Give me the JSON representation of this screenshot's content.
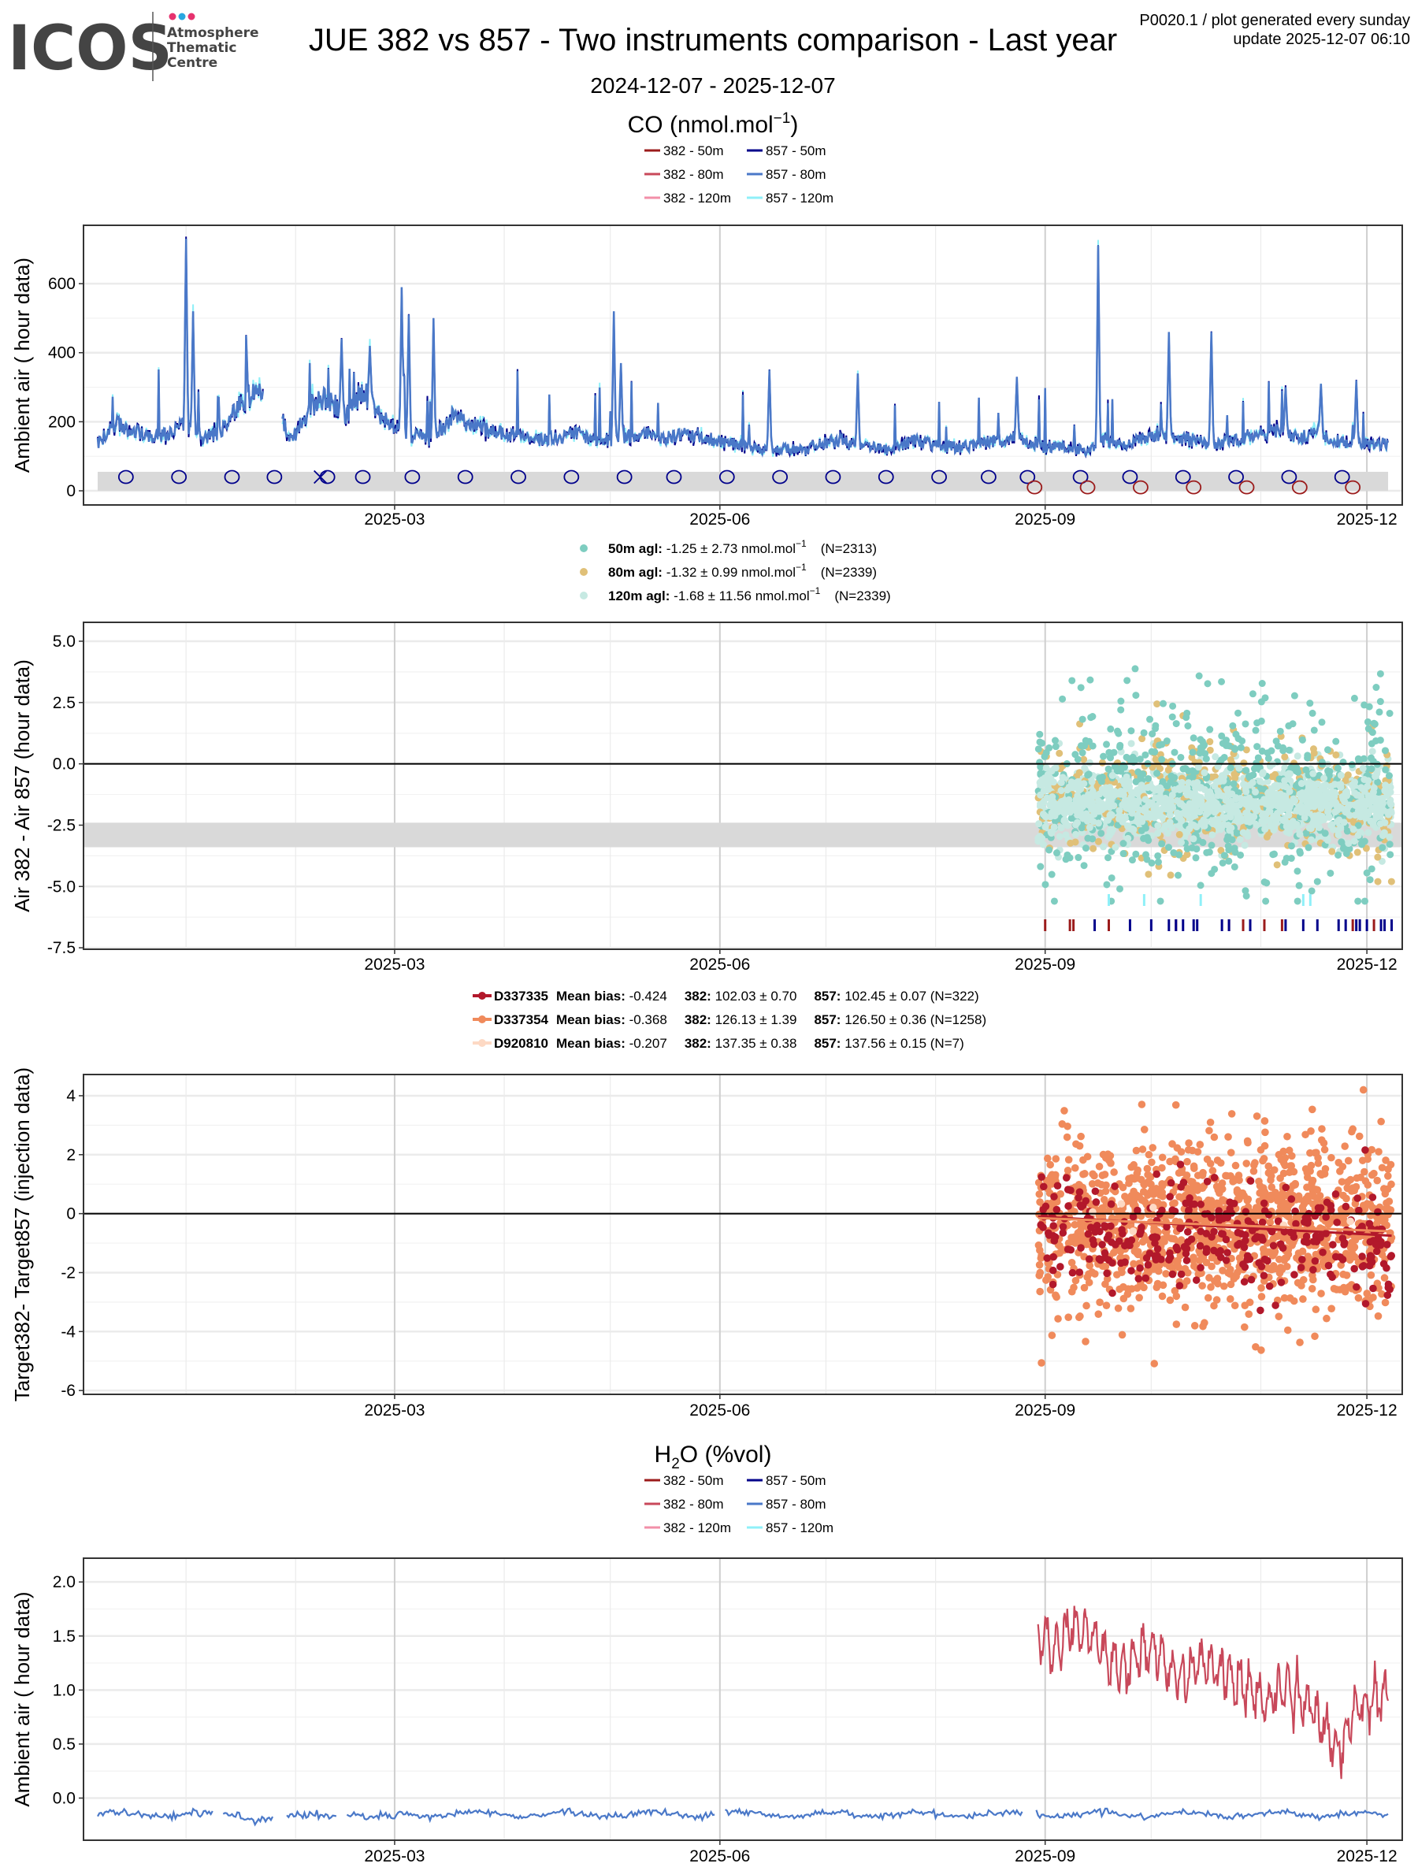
{
  "header": {
    "logo_text": "ICOS",
    "logo_sub": [
      "Atmosphere",
      "Thematic",
      "Centre"
    ],
    "title": "JUE 382 vs 857 - Two instruments comparison - Last year",
    "date_range": "2024-12-07 - 2025-12-07",
    "meta_line1": "P0020.1 / plot generated every sunday",
    "meta_line2": "update  2025-12-07 06:10"
  },
  "colors": {
    "382_50m": "#9B1B1B",
    "382_80m": "#C8485A",
    "382_120m": "#F28FA8",
    "857_50m": "#00008B",
    "857_80m": "#4A78C8",
    "857_120m": "#8FF0F8",
    "diff_50m": "#7ECDC0",
    "diff_80m": "#E0C078",
    "diff_120m": "#C6E9E2",
    "D337335": "#B2182B",
    "D337354": "#F08A5B",
    "D920810": "#FDD9C4",
    "band": "#D9D9D9"
  },
  "x_axis": {
    "start": "2024-12-07",
    "end": "2025-12-07",
    "tick_labels": [
      "2025-03",
      "2025-06",
      "2025-09",
      "2025-12"
    ],
    "tick_days": [
      84,
      176,
      268,
      359
    ],
    "minor_days": [
      25,
      56,
      115,
      145,
      206,
      237,
      298,
      329
    ],
    "xlim_days": [
      -4,
      369
    ]
  },
  "chart_data": [
    {
      "type": "line",
      "title_main": "CO (nmol.mol",
      "title_sup": "−1",
      "title_end": ")",
      "ylabel": "Ambient air ( hour data)",
      "ylim": [
        -41,
        769
      ],
      "yticks": [
        0,
        200,
        400,
        600
      ],
      "legend": [
        {
          "key": "382_50m",
          "label": "382 - 50m"
        },
        {
          "key": "857_50m",
          "label": "857 - 50m"
        },
        {
          "key": "382_80m",
          "label": "382 - 80m"
        },
        {
          "key": "857_80m",
          "label": "857 - 80m"
        },
        {
          "key": "382_120m",
          "label": "382 - 120m"
        },
        {
          "key": "857_120m",
          "label": "857 - 120m"
        }
      ],
      "x_step_days": 5,
      "co_857_baseline": [
        140,
        200,
        180,
        160,
        170,
        200,
        150,
        180,
        250,
        290,
        260,
        150,
        250,
        280,
        220,
        300,
        220,
        180,
        160,
        150,
        220,
        200,
        180,
        170,
        160,
        150,
        160,
        170,
        150,
        150,
        160,
        170,
        150,
        170,
        160,
        150,
        140,
        130,
        120,
        125,
        120,
        140,
        150,
        130,
        130,
        120,
        150,
        140,
        130,
        130,
        140,
        150,
        160,
        140,
        130,
        130,
        120,
        150,
        140,
        150,
        170,
        160,
        150,
        140,
        150,
        160,
        170,
        180,
        160,
        180,
        150,
        140,
        140
      ],
      "co_spikes": [
        [
          25,
          730
        ],
        [
          27,
          520
        ],
        [
          69,
          440
        ],
        [
          77,
          420
        ],
        [
          86,
          590
        ],
        [
          88,
          510
        ],
        [
          95,
          500
        ],
        [
          146,
          520
        ],
        [
          148,
          370
        ],
        [
          190,
          350
        ],
        [
          215,
          340
        ],
        [
          260,
          330
        ],
        [
          283,
          710
        ],
        [
          303,
          460
        ],
        [
          315,
          460
        ],
        [
          336,
          300
        ],
        [
          346,
          310
        ],
        [
          356,
          320
        ]
      ],
      "gap_days": [
        [
          47,
          52
        ]
      ],
      "band": [
        0,
        55
      ],
      "navy_circle_days": [
        8,
        23,
        38,
        50,
        65,
        75,
        89,
        104,
        119,
        134,
        149,
        163,
        178,
        193,
        208,
        223,
        238,
        252,
        263,
        278,
        292,
        307,
        322,
        337,
        352
      ],
      "navy_cross_days": [
        63
      ],
      "red_circle_days": [
        265,
        280,
        295,
        310,
        325,
        340,
        355
      ]
    },
    {
      "type": "scatter",
      "ylabel": "Air 382 - Air 857 (hour data)",
      "ylim": [
        -7.56,
        5.77
      ],
      "yticks": [
        5.0,
        2.5,
        0.0,
        -2.5,
        -5.0,
        -7.5
      ],
      "ytick_labels": [
        "5.0",
        "2.5",
        "0.0",
        "-2.5",
        "-5.0",
        "-7.5"
      ],
      "x_days_range": [
        266,
        366
      ],
      "band": [
        -3.4,
        -2.4
      ],
      "series": [
        {
          "key": "diff_50m",
          "label_bold": "50m agl:",
          "label": " -1.25 ± 2.73 nmol.mol",
          "sup": "−1",
          "n_label": "(N=2313)",
          "mean": -1.25,
          "sd": 2.73,
          "n": 2313
        },
        {
          "key": "diff_80m",
          "label_bold": "80m agl:",
          "label": " -1.32 ± 0.99 nmol.mol",
          "sup": "−1",
          "n_label": "(N=2339)",
          "mean": -1.32,
          "sd": 0.99,
          "n": 2339
        },
        {
          "key": "diff_120m",
          "label_bold": "120m agl:",
          "label": " -1.68 ± 11.56 nmol.mol",
          "sup": "−1",
          "n_label": "(N=2339)",
          "mean": -1.68,
          "sd": 11.56,
          "n": 2339
        }
      ],
      "flag_ticks_382": [
        268,
        275,
        276,
        286,
        305,
        320,
        324,
        330,
        335,
        355,
        361
      ],
      "flag_ticks_857": [
        282,
        292,
        298,
        303,
        305,
        307,
        310,
        311,
        318,
        320,
        326,
        336,
        341,
        345,
        351,
        353,
        356,
        357,
        359,
        363,
        364,
        366
      ],
      "flag_ticks_120m": [
        286,
        296,
        312,
        341,
        343
      ]
    },
    {
      "type": "scatter",
      "ylabel": "Target382- Target857 (injection data)",
      "ylim": [
        -6.13,
        4.72
      ],
      "yticks": [
        4,
        2,
        0,
        -2,
        -4,
        -6
      ],
      "x_days_range": [
        266,
        366
      ],
      "series": [
        {
          "key": "D337335",
          "name": "D337335",
          "bias_label": "Mean bias:",
          "bias": " -0.424",
          "l382": "382:",
          "v382": " 102.03 ± 0.70",
          "l857": "857:",
          "v857": " 102.45 ± 0.07 (N=322)",
          "mean": -0.424,
          "n": 322
        },
        {
          "key": "D337354",
          "name": "D337354",
          "bias_label": "Mean bias:",
          "bias": " -0.368",
          "l382": "382:",
          "v382": " 126.13 ± 1.39",
          "l857": "857:",
          "v857": " 126.50 ± 0.36 (N=1258)",
          "mean": -0.368,
          "n": 1258
        },
        {
          "key": "D920810",
          "name": "D920810",
          "bias_label": "Mean bias:",
          "bias": " -0.207",
          "l382": "382:",
          "v382": " 137.35 ± 0.38",
          "l857": "857:",
          "v857": " 137.56 ± 0.15 (N=7)",
          "mean": -0.207,
          "n": 7
        }
      ]
    },
    {
      "type": "line",
      "title_main": "H",
      "title_sub": "2",
      "title_end": "O (%vol)",
      "ylabel": "Ambient air ( hour data)",
      "ylim": [
        -0.39,
        2.22
      ],
      "yticks": [
        2.0,
        1.5,
        1.0,
        0.5,
        0.0
      ],
      "ytick_labels": [
        "2.0",
        "1.5",
        "1.0",
        "0.5",
        "0.0"
      ],
      "legend": [
        {
          "key": "382_50m",
          "label": "382 - 50m"
        },
        {
          "key": "857_50m",
          "label": "857 - 50m"
        },
        {
          "key": "382_80m",
          "label": "382 - 80m"
        },
        {
          "key": "857_80m",
          "label": "857 - 80m"
        },
        {
          "key": "382_120m",
          "label": "382 - 120m"
        },
        {
          "key": "857_120m",
          "label": "857 - 120m"
        }
      ],
      "h2o_382_start_day": 266,
      "h2o_382_step_days": 5,
      "h2o_382": [
        1.5,
        1.4,
        1.6,
        1.5,
        1.3,
        1.2,
        1.4,
        1.3,
        1.1,
        1.3,
        1.2,
        1.1,
        1.0,
        0.9,
        1.0,
        0.9,
        0.7,
        0.5,
        0.8,
        0.9,
        0.9
      ],
      "h2o_857_level": -0.15,
      "gap_days": [
        [
          33,
          35
        ],
        [
          50,
          53
        ],
        [
          68,
          70
        ],
        [
          175,
          177
        ],
        [
          262,
          265
        ]
      ]
    }
  ]
}
